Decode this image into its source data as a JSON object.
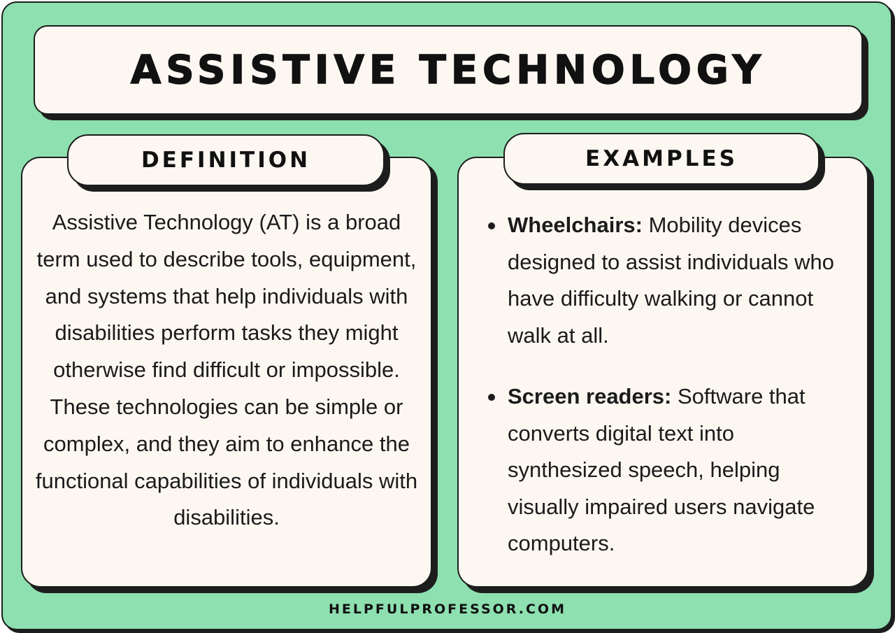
{
  "title": "ASSISTIVE TECHNOLOGY",
  "definition": {
    "heading": "DEFINITION",
    "text": "Assistive Technology (AT) is a broad term used to describe tools, equipment, and systems that help individuals with disabilities perform tasks they might otherwise find difficult or impossible. These technologies can be simple or complex, and they aim to enhance the functional capabilities of individuals with disabilities."
  },
  "examples": {
    "heading": "EXAMPLES",
    "items": [
      {
        "term": "Wheelchairs:",
        "description": " Mobility devices designed to assist individuals who have difficulty walking or cannot walk at all."
      },
      {
        "term": "Screen readers:",
        "description": " Software that converts digital text into synthesized speech, helping visually impaired users navigate computers."
      }
    ]
  },
  "footer": "HELPFULPROFESSOR.COM",
  "colors": {
    "background": "#8ee0b0",
    "card": "#fcf7f1",
    "outline": "#1d1d1d"
  }
}
